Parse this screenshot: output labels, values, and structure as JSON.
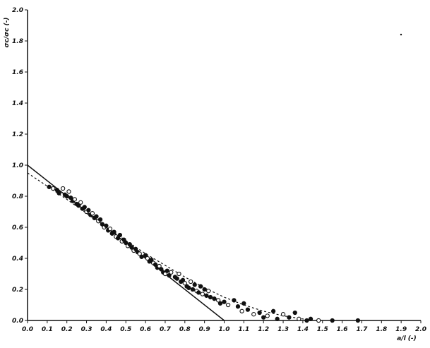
{
  "chart_data": {
    "type": "scatter",
    "xlabel": "a/l (-)",
    "ylabel": "σc/σc (-)",
    "xlim": [
      0.0,
      2.0
    ],
    "ylim": [
      0.0,
      2.0
    ],
    "x_ticks": [
      "0.0",
      "0.1",
      "0.2",
      "0.3",
      "0.4",
      "0.5",
      "0.6",
      "0.7",
      "0.8",
      "0.9",
      "1.0",
      "1.1",
      "1.2",
      "1.3",
      "1.4",
      "1.5",
      "1.6",
      "1.7",
      "1.8",
      "1.9",
      "2.0"
    ],
    "y_ticks": [
      "0.0",
      "0.2",
      "0.4",
      "0.6",
      "0.8",
      "1.0",
      "1.2",
      "1.4",
      "1.6",
      "1.8",
      "2.0"
    ],
    "grid": false,
    "line": {
      "x": [
        0.0,
        1.0
      ],
      "y": [
        1.0,
        0.0
      ]
    },
    "fit_curve": {
      "x": [
        0.0,
        0.2,
        0.4,
        0.6,
        0.8,
        0.9,
        1.0,
        1.1,
        1.2,
        1.3,
        1.4,
        1.45
      ],
      "y": [
        0.95,
        0.78,
        0.6,
        0.43,
        0.28,
        0.21,
        0.15,
        0.1,
        0.06,
        0.03,
        0.01,
        0.0
      ]
    },
    "points": [
      {
        "x": 0.11,
        "y": 0.86
      },
      {
        "x": 0.13,
        "y": 0.85
      },
      {
        "x": 0.15,
        "y": 0.84
      },
      {
        "x": 0.16,
        "y": 0.82
      },
      {
        "x": 0.18,
        "y": 0.85
      },
      {
        "x": 0.19,
        "y": 0.81
      },
      {
        "x": 0.2,
        "y": 0.8
      },
      {
        "x": 0.21,
        "y": 0.83
      },
      {
        "x": 0.22,
        "y": 0.79
      },
      {
        "x": 0.23,
        "y": 0.77
      },
      {
        "x": 0.24,
        "y": 0.78
      },
      {
        "x": 0.25,
        "y": 0.75
      },
      {
        "x": 0.26,
        "y": 0.74
      },
      {
        "x": 0.27,
        "y": 0.76
      },
      {
        "x": 0.28,
        "y": 0.72
      },
      {
        "x": 0.29,
        "y": 0.73
      },
      {
        "x": 0.3,
        "y": 0.7
      },
      {
        "x": 0.31,
        "y": 0.71
      },
      {
        "x": 0.32,
        "y": 0.68
      },
      {
        "x": 0.33,
        "y": 0.69
      },
      {
        "x": 0.34,
        "y": 0.66
      },
      {
        "x": 0.35,
        "y": 0.67
      },
      {
        "x": 0.36,
        "y": 0.64
      },
      {
        "x": 0.37,
        "y": 0.65
      },
      {
        "x": 0.38,
        "y": 0.62
      },
      {
        "x": 0.39,
        "y": 0.6
      },
      {
        "x": 0.4,
        "y": 0.61
      },
      {
        "x": 0.41,
        "y": 0.58
      },
      {
        "x": 0.42,
        "y": 0.59
      },
      {
        "x": 0.43,
        "y": 0.56
      },
      {
        "x": 0.44,
        "y": 0.57
      },
      {
        "x": 0.45,
        "y": 0.54
      },
      {
        "x": 0.46,
        "y": 0.53
      },
      {
        "x": 0.47,
        "y": 0.55
      },
      {
        "x": 0.48,
        "y": 0.51
      },
      {
        "x": 0.49,
        "y": 0.52
      },
      {
        "x": 0.5,
        "y": 0.5
      },
      {
        "x": 0.51,
        "y": 0.48
      },
      {
        "x": 0.52,
        "y": 0.49
      },
      {
        "x": 0.53,
        "y": 0.47
      },
      {
        "x": 0.54,
        "y": 0.45
      },
      {
        "x": 0.55,
        "y": 0.46
      },
      {
        "x": 0.56,
        "y": 0.44
      },
      {
        "x": 0.57,
        "y": 0.43
      },
      {
        "x": 0.58,
        "y": 0.41
      },
      {
        "x": 0.6,
        "y": 0.42
      },
      {
        "x": 0.61,
        "y": 0.4
      },
      {
        "x": 0.62,
        "y": 0.38
      },
      {
        "x": 0.63,
        "y": 0.39
      },
      {
        "x": 0.64,
        "y": 0.37
      },
      {
        "x": 0.65,
        "y": 0.36
      },
      {
        "x": 0.66,
        "y": 0.34
      },
      {
        "x": 0.67,
        "y": 0.35
      },
      {
        "x": 0.68,
        "y": 0.33
      },
      {
        "x": 0.69,
        "y": 0.31
      },
      {
        "x": 0.7,
        "y": 0.3
      },
      {
        "x": 0.71,
        "y": 0.32
      },
      {
        "x": 0.72,
        "y": 0.29
      },
      {
        "x": 0.73,
        "y": 0.31
      },
      {
        "x": 0.75,
        "y": 0.28
      },
      {
        "x": 0.76,
        "y": 0.27
      },
      {
        "x": 0.77,
        "y": 0.3
      },
      {
        "x": 0.78,
        "y": 0.25
      },
      {
        "x": 0.79,
        "y": 0.26
      },
      {
        "x": 0.8,
        "y": 0.24
      },
      {
        "x": 0.81,
        "y": 0.22
      },
      {
        "x": 0.82,
        "y": 0.21
      },
      {
        "x": 0.83,
        "y": 0.25
      },
      {
        "x": 0.84,
        "y": 0.2
      },
      {
        "x": 0.85,
        "y": 0.23
      },
      {
        "x": 0.86,
        "y": 0.19
      },
      {
        "x": 0.87,
        "y": 0.18
      },
      {
        "x": 0.88,
        "y": 0.22
      },
      {
        "x": 0.89,
        "y": 0.17
      },
      {
        "x": 0.9,
        "y": 0.2
      },
      {
        "x": 0.91,
        "y": 0.16
      },
      {
        "x": 0.92,
        "y": 0.19
      },
      {
        "x": 0.93,
        "y": 0.15
      },
      {
        "x": 0.95,
        "y": 0.14
      },
      {
        "x": 0.97,
        "y": 0.13
      },
      {
        "x": 0.98,
        "y": 0.11
      },
      {
        "x": 1.0,
        "y": 0.12
      },
      {
        "x": 1.02,
        "y": 0.1
      },
      {
        "x": 1.05,
        "y": 0.13
      },
      {
        "x": 1.07,
        "y": 0.09
      },
      {
        "x": 1.09,
        "y": 0.06
      },
      {
        "x": 1.1,
        "y": 0.11
      },
      {
        "x": 1.12,
        "y": 0.07
      },
      {
        "x": 1.15,
        "y": 0.04
      },
      {
        "x": 1.18,
        "y": 0.05
      },
      {
        "x": 1.2,
        "y": 0.02
      },
      {
        "x": 1.22,
        "y": 0.03
      },
      {
        "x": 1.25,
        "y": 0.06
      },
      {
        "x": 1.27,
        "y": 0.01
      },
      {
        "x": 1.3,
        "y": 0.04
      },
      {
        "x": 1.33,
        "y": 0.02
      },
      {
        "x": 1.36,
        "y": 0.05
      },
      {
        "x": 1.38,
        "y": 0.01
      },
      {
        "x": 1.42,
        "y": 0.0
      },
      {
        "x": 1.44,
        "y": 0.01
      },
      {
        "x": 1.48,
        "y": 0.0
      },
      {
        "x": 1.55,
        "y": 0.0
      },
      {
        "x": 1.68,
        "y": 0.0
      }
    ]
  }
}
